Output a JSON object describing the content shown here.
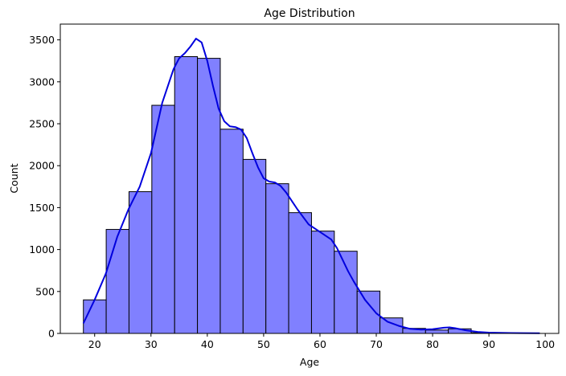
{
  "chart_data": {
    "type": "bar",
    "subtype": "histogram_with_kde",
    "title": "Age Distribution",
    "xlabel": "Age",
    "ylabel": "Count",
    "xlim": [
      13.9,
      102.4
    ],
    "ylim": [
      0,
      3688
    ],
    "xticks": [
      20,
      30,
      40,
      50,
      60,
      70,
      80,
      90,
      100
    ],
    "yticks": [
      0,
      500,
      1000,
      1500,
      2000,
      2500,
      3000,
      3500
    ],
    "grid": false,
    "legend": null,
    "bin_edges": [
      18,
      22.05,
      26.1,
      30.15,
      34.2,
      38.25,
      42.3,
      46.35,
      50.4,
      54.45,
      58.5,
      62.55,
      66.6,
      70.65,
      74.7,
      78.75,
      82.8,
      86.85,
      90.9,
      94.95,
      99
    ],
    "values": [
      400,
      1240,
      1690,
      2720,
      3300,
      3280,
      2435,
      2075,
      1785,
      1440,
      1220,
      980,
      505,
      185,
      60,
      40,
      55,
      8,
      5,
      3
    ],
    "kde": {
      "x": [
        18,
        20,
        22,
        24,
        26,
        28,
        30,
        32,
        34,
        35,
        36,
        37,
        38,
        39,
        40,
        41,
        42,
        43,
        44,
        45,
        46,
        47,
        48,
        49,
        50,
        51,
        52,
        53,
        54,
        56,
        58,
        60,
        62,
        63,
        64,
        65,
        66,
        68,
        70,
        72,
        74,
        76,
        78,
        80,
        82,
        83,
        84,
        86,
        88,
        90,
        93,
        96,
        99
      ],
      "y": [
        120,
        400,
        715,
        1150,
        1480,
        1750,
        2150,
        2750,
        3150,
        3280,
        3340,
        3420,
        3515,
        3470,
        3250,
        2950,
        2680,
        2530,
        2470,
        2460,
        2430,
        2330,
        2150,
        1980,
        1850,
        1810,
        1800,
        1760,
        1680,
        1480,
        1300,
        1210,
        1120,
        1020,
        880,
        740,
        620,
        400,
        240,
        140,
        90,
        55,
        45,
        50,
        68,
        72,
        62,
        35,
        18,
        10,
        6,
        4,
        3
      ]
    },
    "colors": {
      "bar_fill": "#8080ff",
      "bar_edge": "#000000",
      "kde_line": "#0000dd"
    }
  }
}
